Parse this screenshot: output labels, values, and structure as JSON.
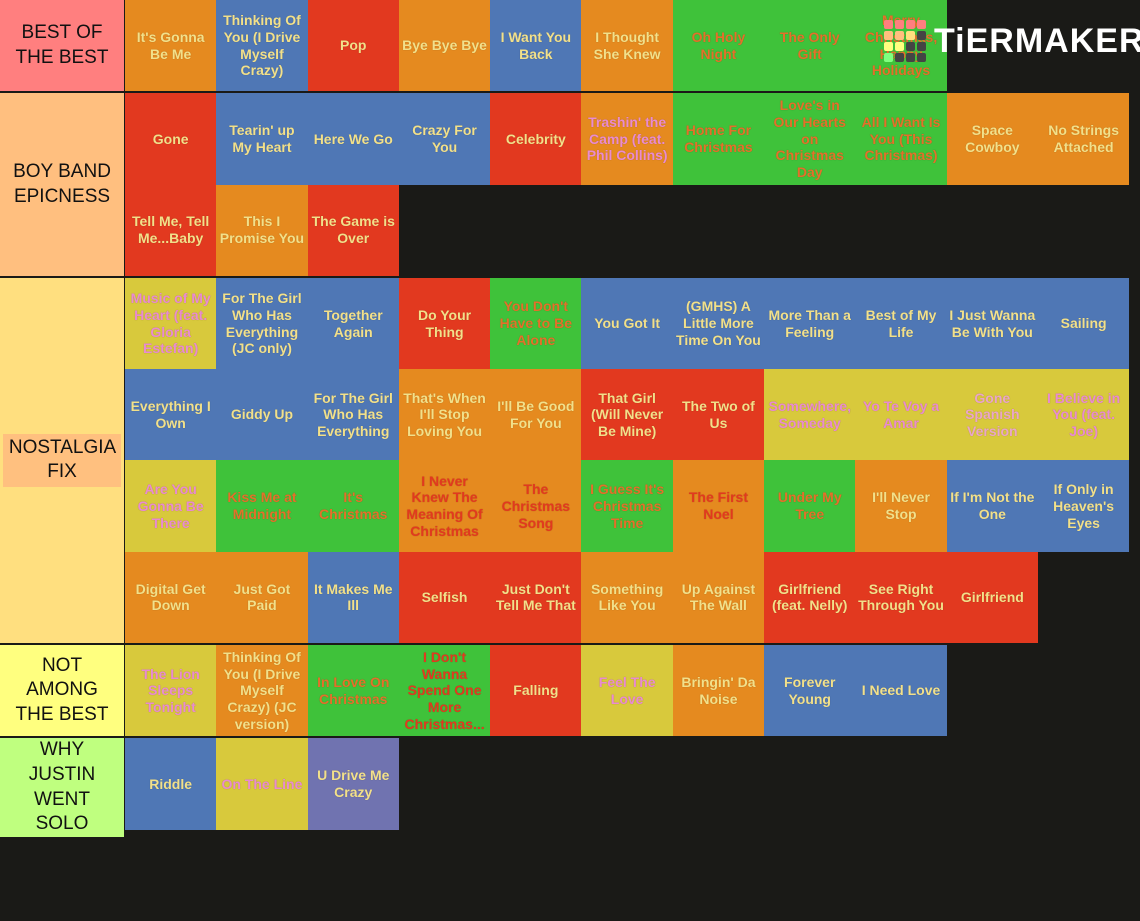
{
  "logo": "TiERMAKER",
  "tiers": [
    {
      "label": "BEST OF THE BEST",
      "color": "#ff7f7f",
      "items": [
        {
          "text": "It's Gonna Be Me",
          "bg": "#e58a1f",
          "fg": "#f2e08a"
        },
        {
          "text": "Thinking Of You (I Drive Myself Crazy)",
          "bg": "#4f77b5",
          "fg": "#f2e08a"
        },
        {
          "text": "Pop",
          "bg": "#e2391f",
          "fg": "#f2e08a"
        },
        {
          "text": "Bye Bye Bye",
          "bg": "#e58a1f",
          "fg": "#f2e08a"
        },
        {
          "text": "I Want You Back",
          "bg": "#4f77b5",
          "fg": "#f2e08a"
        },
        {
          "text": "I Thought She Knew",
          "bg": "#e58a1f",
          "fg": "#f2e08a"
        },
        {
          "text": "Oh Holy Night",
          "bg": "#3fc23a",
          "fg": "#e4702a"
        },
        {
          "text": "The Only Gift",
          "bg": "#3fc23a",
          "fg": "#e4702a"
        },
        {
          "text": "Merry Christmas, Happy Holidays",
          "bg": "#3fc23a",
          "fg": "#e4702a"
        }
      ]
    },
    {
      "label": "BOY BAND EPICNESS",
      "color": "#ffbf7f",
      "items": [
        {
          "text": "Gone",
          "bg": "#e2391f",
          "fg": "#f2e08a"
        },
        {
          "text": "Tearin' up My Heart",
          "bg": "#4f77b5",
          "fg": "#f2e08a"
        },
        {
          "text": "Here We Go",
          "bg": "#4f77b5",
          "fg": "#f2e08a"
        },
        {
          "text": "Crazy For You",
          "bg": "#4f77b5",
          "fg": "#f2e08a"
        },
        {
          "text": "Celebrity",
          "bg": "#e2391f",
          "fg": "#f2e08a"
        },
        {
          "text": "Trashin' the Camp (feat. Phil Collins)",
          "bg": "#e58a1f",
          "fg": "#e98bd0"
        },
        {
          "text": "Home For Christmas",
          "bg": "#3fc23a",
          "fg": "#e4702a"
        },
        {
          "text": "Love's in Our Hearts on Christmas Day",
          "bg": "#3fc23a",
          "fg": "#e4702a"
        },
        {
          "text": "All I Want Is You (This Christmas)",
          "bg": "#3fc23a",
          "fg": "#e4702a"
        },
        {
          "text": "Space Cowboy",
          "bg": "#e58a1f",
          "fg": "#f2e08a"
        },
        {
          "text": "No Strings Attached",
          "bg": "#e58a1f",
          "fg": "#f2e08a"
        },
        {
          "text": "Tell Me, Tell Me...Baby",
          "bg": "#e2391f",
          "fg": "#f2e08a"
        },
        {
          "text": "This I Promise You",
          "bg": "#e58a1f",
          "fg": "#f2e08a"
        },
        {
          "text": "The Game is Over",
          "bg": "#e2391f",
          "fg": "#f2e08a"
        }
      ]
    },
    {
      "label": "NOSTALGIA FIX",
      "color": "#ffdf7f",
      "items": [
        {
          "text": "Music of My Heart (feat. Gloria Estefan)",
          "bg": "#d8c93c",
          "fg": "#e98bd0"
        },
        {
          "text": "For The Girl Who Has Everything (JC only)",
          "bg": "#4f77b5",
          "fg": "#f2e08a"
        },
        {
          "text": "Together Again",
          "bg": "#4f77b5",
          "fg": "#f2e08a"
        },
        {
          "text": "Do Your Thing",
          "bg": "#e2391f",
          "fg": "#f2e08a"
        },
        {
          "text": "You Don't Have to Be Alone",
          "bg": "#3fc23a",
          "fg": "#e4702a"
        },
        {
          "text": "You Got It",
          "bg": "#4f77b5",
          "fg": "#f2e08a"
        },
        {
          "text": "(GMHS) A Little More Time On You",
          "bg": "#4f77b5",
          "fg": "#f2e08a"
        },
        {
          "text": "More Than a Feeling",
          "bg": "#4f77b5",
          "fg": "#f2e08a"
        },
        {
          "text": "Best of My Life",
          "bg": "#4f77b5",
          "fg": "#f2e08a"
        },
        {
          "text": "I Just Wanna Be With You",
          "bg": "#4f77b5",
          "fg": "#f2e08a"
        },
        {
          "text": "Sailing",
          "bg": "#4f77b5",
          "fg": "#f2e08a"
        },
        {
          "text": "Everything I Own",
          "bg": "#4f77b5",
          "fg": "#f2e08a"
        },
        {
          "text": "Giddy Up",
          "bg": "#4f77b5",
          "fg": "#f2e08a"
        },
        {
          "text": "For The Girl Who Has Everything",
          "bg": "#4f77b5",
          "fg": "#f2e08a"
        },
        {
          "text": "That's When I'll Stop Loving You",
          "bg": "#e58a1f",
          "fg": "#f2e08a"
        },
        {
          "text": "I'll Be Good For You",
          "bg": "#e58a1f",
          "fg": "#f2e08a"
        },
        {
          "text": "That Girl (Will Never Be Mine)",
          "bg": "#e2391f",
          "fg": "#f2e08a"
        },
        {
          "text": "The Two of Us",
          "bg": "#e2391f",
          "fg": "#f2e08a"
        },
        {
          "text": "Somewhere, Someday",
          "bg": "#d8c93c",
          "fg": "#e98bd0"
        },
        {
          "text": "Yo Te Voy a Amar",
          "bg": "#d8c93c",
          "fg": "#e98bd0"
        },
        {
          "text": "Gone Spanish Version",
          "bg": "#d8c93c",
          "fg": "#eaa6c8"
        },
        {
          "text": "I Believe in You (feat. Joe)",
          "bg": "#d8c93c",
          "fg": "#e98bd0"
        },
        {
          "text": "Are You Gonna Be There",
          "bg": "#d8c93c",
          "fg": "#e98bd0"
        },
        {
          "text": "Kiss Me at Midnight",
          "bg": "#3fc23a",
          "fg": "#e4702a"
        },
        {
          "text": "It's Christmas",
          "bg": "#3fc23a",
          "fg": "#e4702a"
        },
        {
          "text": "I Never Knew The Meaning Of Christmas",
          "bg": "#e58a1f",
          "fg": "#e2391f"
        },
        {
          "text": "The Christmas Song",
          "bg": "#e58a1f",
          "fg": "#e2391f"
        },
        {
          "text": "I Guess It's Christmas Time",
          "bg": "#3fc23a",
          "fg": "#e4702a"
        },
        {
          "text": "The First Noel",
          "bg": "#e58a1f",
          "fg": "#e2391f"
        },
        {
          "text": "Under My Tree",
          "bg": "#3fc23a",
          "fg": "#e4702a"
        },
        {
          "text": "I'll Never Stop",
          "bg": "#e58a1f",
          "fg": "#f2e08a"
        },
        {
          "text": "If I'm Not the One",
          "bg": "#4f77b5",
          "fg": "#f2e08a"
        },
        {
          "text": "If Only in Heaven's Eyes",
          "bg": "#4f77b5",
          "fg": "#f2e08a"
        },
        {
          "text": "Digital Get Down",
          "bg": "#e58a1f",
          "fg": "#f2e08a"
        },
        {
          "text": "Just Got Paid",
          "bg": "#e58a1f",
          "fg": "#f2e08a"
        },
        {
          "text": "It Makes Me Ill",
          "bg": "#4f77b5",
          "fg": "#f2e08a"
        },
        {
          "text": "Selfish",
          "bg": "#e2391f",
          "fg": "#f2e08a"
        },
        {
          "text": "Just Don't Tell Me That",
          "bg": "#e2391f",
          "fg": "#f2e08a"
        },
        {
          "text": "Something Like You",
          "bg": "#e58a1f",
          "fg": "#f2e08a"
        },
        {
          "text": "Up Against The Wall",
          "bg": "#e58a1f",
          "fg": "#f2e08a"
        },
        {
          "text": "Girlfriend (feat. Nelly)",
          "bg": "#e2391f",
          "fg": "#f2e08a"
        },
        {
          "text": "See Right Through You",
          "bg": "#e2391f",
          "fg": "#f2e08a"
        },
        {
          "text": "Girlfriend",
          "bg": "#e2391f",
          "fg": "#f2e08a"
        }
      ]
    },
    {
      "label": "NOT AMONG THE BEST",
      "color": "#ffff7f",
      "items": [
        {
          "text": "The Lion Sleeps Tonight",
          "bg": "#d8c93c",
          "fg": "#e98bd0"
        },
        {
          "text": "Thinking Of You (I Drive Myself Crazy) (JC version)",
          "bg": "#e58a1f",
          "fg": "#f2e08a"
        },
        {
          "text": "In Love On Christmas",
          "bg": "#3fc23a",
          "fg": "#e4702a"
        },
        {
          "text": "I Don't Wanna Spend One More Christmas...",
          "bg": "#3fc23a",
          "fg": "#e2391f"
        },
        {
          "text": "Falling",
          "bg": "#e2391f",
          "fg": "#f2e08a"
        },
        {
          "text": "Feel The Love",
          "bg": "#d8c93c",
          "fg": "#e98bd0"
        },
        {
          "text": "Bringin' Da Noise",
          "bg": "#e58a1f",
          "fg": "#f2e08a"
        },
        {
          "text": "Forever Young",
          "bg": "#4f77b5",
          "fg": "#f2e08a"
        },
        {
          "text": "I Need Love",
          "bg": "#4f77b5",
          "fg": "#f2e08a"
        }
      ]
    },
    {
      "label": "WHY JUSTIN WENT SOLO",
      "color": "#bfff7f",
      "items": [
        {
          "text": "Riddle",
          "bg": "#4f77b5",
          "fg": "#f2e08a"
        },
        {
          "text": "On The Line",
          "bg": "#d8c93c",
          "fg": "#e98bd0"
        },
        {
          "text": "U Drive Me Crazy",
          "bg": "#7073b0",
          "fg": "#f2e08a"
        }
      ]
    }
  ]
}
